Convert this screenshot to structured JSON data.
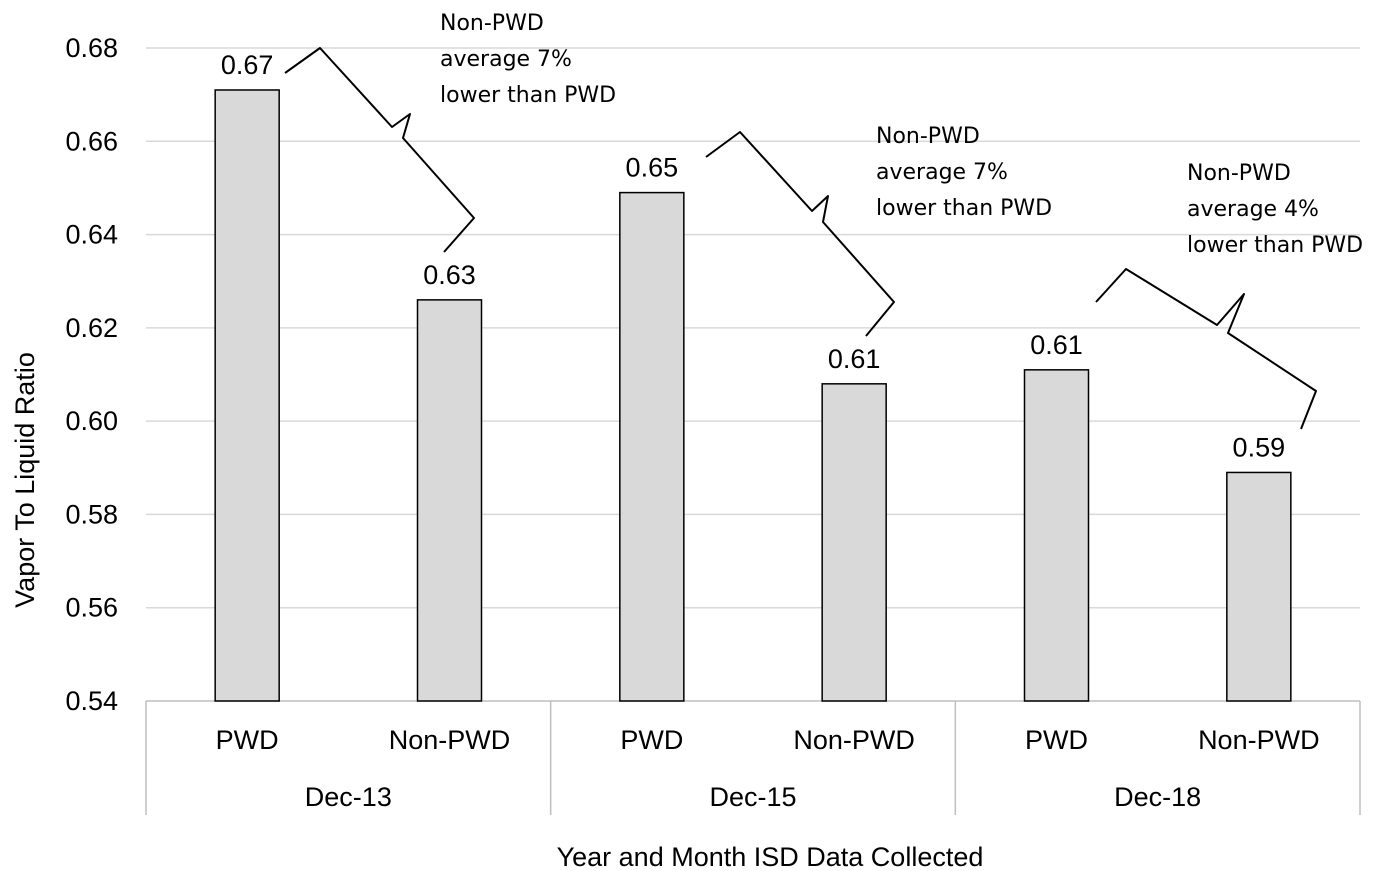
{
  "chart_data": {
    "type": "bar",
    "title": "",
    "xlabel": "Year and Month ISD Data Collected",
    "ylabel": "Vapor To Liquid Ratio",
    "ylim": [
      0.54,
      0.68
    ],
    "yticks": [
      "0.54",
      "0.56",
      "0.58",
      "0.60",
      "0.62",
      "0.64",
      "0.66",
      "0.68"
    ],
    "grid": true,
    "groups": [
      {
        "label": "Dec-13",
        "bars": [
          {
            "category": "PWD",
            "value": 0.671,
            "data_label": "0.67"
          },
          {
            "category": "Non-PWD",
            "value": 0.626,
            "data_label": "0.63"
          }
        ],
        "annotation": [
          "Non-PWD",
          "average 7%",
          "lower than PWD"
        ]
      },
      {
        "label": "Dec-15",
        "bars": [
          {
            "category": "PWD",
            "value": 0.649,
            "data_label": "0.65"
          },
          {
            "category": "Non-PWD",
            "value": 0.608,
            "data_label": "0.61"
          }
        ],
        "annotation": [
          "Non-PWD",
          "average 7%",
          "lower than PWD"
        ]
      },
      {
        "label": "Dec-18",
        "bars": [
          {
            "category": "PWD",
            "value": 0.611,
            "data_label": "0.61"
          },
          {
            "category": "Non-PWD",
            "value": 0.589,
            "data_label": "0.59"
          }
        ],
        "annotation": [
          "Non-PWD",
          "average 4%",
          "lower than PWD"
        ]
      }
    ],
    "colors": {
      "bar_fill": "#d9d9d9",
      "bar_stroke": "#000000",
      "grid": "#d9d9d9",
      "axis": "#bfbfbf"
    }
  }
}
